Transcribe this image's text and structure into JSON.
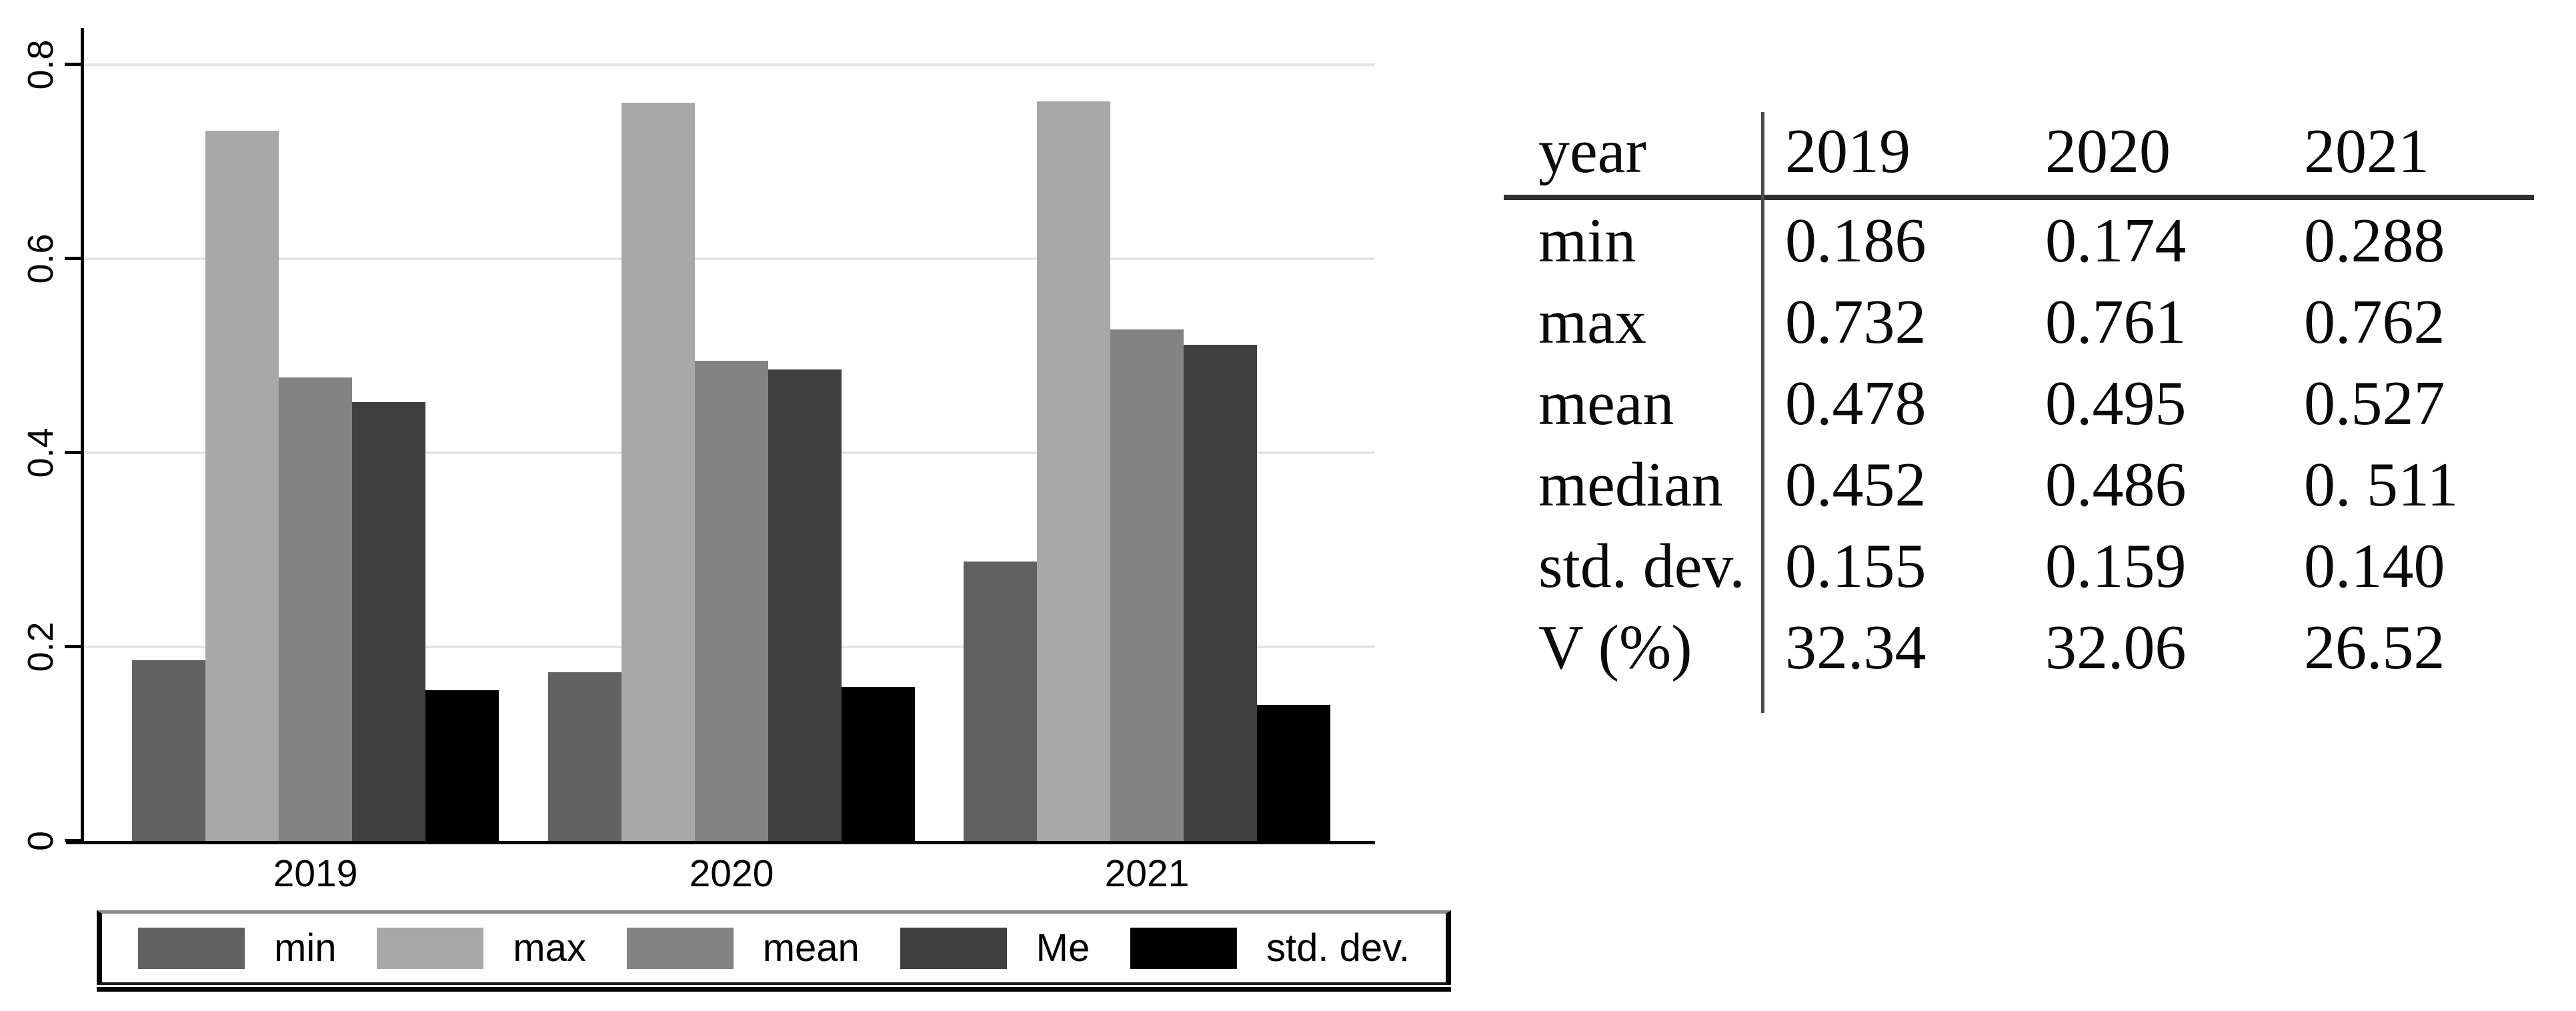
{
  "chart_data": {
    "type": "bar",
    "categories": [
      "2019",
      "2020",
      "2021"
    ],
    "series": [
      {
        "name": "min",
        "color": "#616161",
        "values": [
          0.186,
          0.174,
          0.288
        ]
      },
      {
        "name": "max",
        "color": "#a8a8a8",
        "values": [
          0.732,
          0.761,
          0.762
        ]
      },
      {
        "name": "mean",
        "color": "#838383",
        "values": [
          0.478,
          0.495,
          0.527
        ]
      },
      {
        "name": "Me",
        "color": "#3f3f3f",
        "values": [
          0.452,
          0.486,
          0.511
        ]
      },
      {
        "name": "std. dev.",
        "color": "#000000",
        "values": [
          0.155,
          0.159,
          0.14
        ]
      }
    ],
    "title": "",
    "xlabel": "",
    "ylabel": "",
    "ylim": [
      0,
      0.838
    ],
    "yticks": [
      0,
      0.2,
      0.4,
      0.6,
      0.8
    ],
    "ytick_labels": [
      "0",
      "0.2",
      "0.4",
      "0.6",
      "0.8"
    ],
    "grid": true,
    "gridline_color": "#e5e5e5",
    "legend_position": "bottom",
    "legend_labels": [
      "min",
      "max",
      "mean",
      "Me",
      "std. dev."
    ]
  },
  "table": {
    "header": {
      "label": "year",
      "columns": [
        "2019",
        "2020",
        "2021"
      ]
    },
    "rows": [
      {
        "label": "min",
        "values": [
          "0.186",
          "0.174",
          "0.288"
        ]
      },
      {
        "label": "max",
        "values": [
          "0.732",
          "0.761",
          "0.762"
        ]
      },
      {
        "label": "mean",
        "values": [
          "0.478",
          "0.495",
          "0.527"
        ]
      },
      {
        "label": "median",
        "values": [
          "0.452",
          "0.486",
          "0. 511"
        ]
      },
      {
        "label": "std. dev.",
        "values": [
          "0.155",
          "0.159",
          "0.140"
        ]
      },
      {
        "label": "V (%)",
        "values": [
          "32.34",
          "32.06",
          "26.52"
        ]
      }
    ]
  },
  "colors": {
    "axis": "#000000",
    "gridline": "#e5e5e5",
    "table_rule": "#2f2f2f",
    "table_vrule": "#4a4a4a",
    "background": "#ffffff"
  }
}
